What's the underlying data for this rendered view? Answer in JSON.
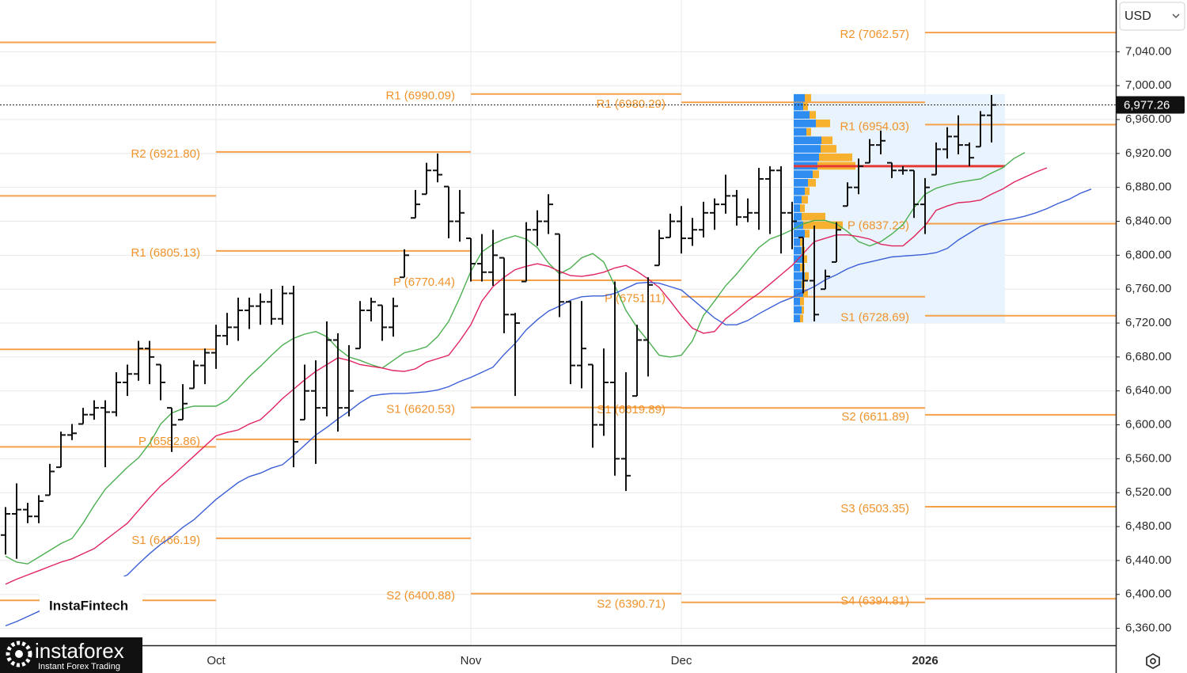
{
  "chart_data": {
    "type": "ohlc",
    "currency": "USD",
    "categories": [
      null,
      null,
      null,
      null,
      null,
      null,
      null,
      null,
      null,
      null,
      null,
      null,
      null,
      null,
      null,
      null,
      null,
      null,
      null,
      "Oct",
      null,
      null,
      null,
      null,
      null,
      null,
      null,
      null,
      null,
      null,
      null,
      null,
      null,
      null,
      null,
      null,
      null,
      null,
      null,
      null,
      null,
      null,
      "Nov",
      null,
      null,
      null,
      null,
      null,
      null,
      null,
      null,
      null,
      null,
      null,
      null,
      null,
      null,
      null,
      null,
      null,
      null,
      "Dec",
      null,
      null,
      null,
      null,
      null,
      null,
      null,
      null,
      null,
      null,
      null,
      null,
      null,
      null,
      null,
      null,
      null,
      null,
      null,
      null,
      null,
      "2026",
      null,
      null,
      null,
      null,
      null,
      null,
      null,
      null,
      null,
      null,
      null,
      null,
      null,
      null,
      null,
      null,
      null
    ],
    "open": [
      6470,
      6495,
      6500,
      6492,
      6517,
      6550,
      6588,
      6601,
      6612,
      6620,
      6615,
      6650,
      6660,
      6690,
      6671,
      6620,
      6606,
      6643,
      6670,
      6685,
      6705,
      6715,
      6735,
      6740,
      6745,
      6725,
      6755,
      6606,
      6640,
      6620,
      6700,
      6620,
      6690,
      6735,
      6741,
      6715,
      6774,
      6844,
      6872,
      6900,
      6881,
      6840,
      6820,
      6790,
      6780,
      6797,
      6730,
      6769,
      6830,
      6840,
      6825,
      6745,
      6670,
      6671,
      6600,
      6650,
      6560,
      6634,
      6700,
      6788,
      6821,
      6840,
      6820,
      6830,
      6850,
      6860,
      6870,
      6845,
      6850,
      6890,
      6900,
      6850,
      6821,
      6770,
      6760,
      6792,
      6858,
      6880,
      6909,
      6930,
      6909,
      6900,
      6900,
      6860,
      6895,
      6925,
      6940,
      6930,
      6928,
      6965,
      null,
      null,
      null,
      null,
      null,
      null,
      null,
      null,
      null,
      null,
      null
    ],
    "high": [
      6503,
      6531,
      6508,
      6517,
      6554,
      6592,
      6601,
      6620,
      6629,
      6629,
      6662,
      6671,
      6699,
      6699,
      6671,
      6620,
      6648,
      6676,
      6690,
      6718,
      6732,
      6750,
      6750,
      6755,
      6760,
      6764,
      6764,
      6671,
      6676,
      6722,
      6708,
      6694,
      6746,
      6750,
      6741,
      6750,
      6807,
      6877,
      6909,
      6920,
      6881,
      6877,
      6820,
      6825,
      6830,
      6797,
      6732,
      6839,
      6853,
      6872,
      6825,
      6746,
      6746,
      6671,
      6690,
      6769,
      6662,
      6718,
      6774,
      6830,
      6849,
      6858,
      6844,
      6863,
      6867,
      6895,
      6877,
      6867,
      6903,
      6905,
      6905,
      6863,
      6821,
      6835,
      6783,
      6839,
      6886,
      6914,
      6937,
      6947,
      6909,
      6905,
      6900,
      6891,
      6933,
      6951,
      6965,
      6933,
      6970,
      6989,
      null,
      null,
      null,
      null,
      null,
      null,
      null,
      null,
      null,
      null,
      null
    ],
    "low": [
      6447,
      6442,
      6484,
      6484,
      6517,
      6550,
      6582,
      6601,
      6606,
      6550,
      6610,
      6634,
      6652,
      6648,
      6629,
      6568,
      6606,
      6643,
      6648,
      6666,
      6694,
      6699,
      6713,
      6718,
      6718,
      6718,
      6550,
      6606,
      6554,
      6610,
      6592,
      6610,
      6690,
      6722,
      6699,
      6704,
      6774,
      6844,
      6872,
      6886,
      6820,
      6816,
      6769,
      6769,
      6764,
      6708,
      6634,
      6769,
      6811,
      6825,
      6727,
      6648,
      6643,
      6573,
      6587,
      6540,
      6522,
      6634,
      6657,
      6788,
      6821,
      6802,
      6811,
      6821,
      6830,
      6849,
      6835,
      6839,
      6830,
      6825,
      6802,
      6807,
      6755,
      6722,
      6760,
      6792,
      6858,
      6872,
      6909,
      6919,
      6891,
      6895,
      6844,
      6825,
      6895,
      6914,
      6919,
      6905,
      6928,
      6933,
      null,
      null,
      null,
      null,
      null,
      null,
      null,
      null,
      null,
      null,
      null
    ],
    "close": [
      6495,
      6500,
      6492,
      6510,
      6545,
      6588,
      6590,
      6612,
      6620,
      6615,
      6650,
      6660,
      6690,
      6680,
      6650,
      6600,
      6625,
      6670,
      6685,
      6705,
      6715,
      6735,
      6740,
      6745,
      6725,
      6755,
      6580,
      6640,
      6620,
      6700,
      6620,
      6640,
      6735,
      6745,
      6715,
      6740,
      6800,
      6860,
      6900,
      6895,
      6840,
      6850,
      6790,
      6780,
      6800,
      6730,
      6720,
      6830,
      6840,
      6860,
      6745,
      6670,
      6690,
      6600,
      6650,
      6560,
      6540,
      6700,
      6765,
      6820,
      6840,
      6820,
      6830,
      6850,
      6860,
      6870,
      6845,
      6850,
      6890,
      6900,
      6850,
      6840,
      6770,
      6730,
      6775,
      6830,
      6880,
      6905,
      6930,
      6935,
      6900,
      6900,
      6860,
      6880,
      6925,
      6940,
      6930,
      6915,
      6965,
      6977.26,
      null,
      null,
      null,
      null,
      null,
      null,
      null,
      null,
      null,
      null,
      null
    ],
    "bar_color": "#111111",
    "lines": [
      {
        "color": "#4caf50",
        "values": [
          6445,
          6438,
          6436,
          6444,
          6452,
          6460,
          6466,
          6484,
          6505,
          6524,
          6537,
          6550,
          6561,
          6578,
          6601,
          6614,
          6619,
          6622,
          6622,
          6622,
          6629,
          6643,
          6657,
          6669,
          6682,
          6694,
          6702,
          6707,
          6710,
          6704,
          6690,
          6680,
          6676,
          6671,
          6667,
          6676,
          6685,
          6688,
          6692,
          6704,
          6722,
          6750,
          6781,
          6804,
          6813,
          6819,
          6823,
          6819,
          6809,
          6791,
          6778,
          6785,
          6797,
          6802,
          6792,
          6764,
          6735,
          6715,
          6699,
          6682,
          6680,
          6682,
          6699,
          6729,
          6746,
          6764,
          6778,
          6794,
          6809,
          6819,
          6824,
          6830,
          6837,
          6841,
          6841,
          6837,
          6828,
          6816,
          6811,
          6816,
          6825,
          6836,
          6856,
          6872,
          6879,
          6883,
          6886,
          6888,
          6890,
          6897,
          6903,
          6914,
          6921,
          null,
          null,
          null,
          null,
          null,
          null,
          null,
          null
        ]
      },
      {
        "color": "#e0245e",
        "values": [
          6412,
          6418,
          6423,
          6428,
          6433,
          6438,
          6442,
          6448,
          6454,
          6464,
          6474,
          6484,
          6499,
          6514,
          6528,
          6539,
          6551,
          6563,
          6575,
          6587,
          6591,
          6594,
          6601,
          6606,
          6618,
          6631,
          6642,
          6653,
          6663,
          6671,
          6679,
          6676,
          6671,
          6669,
          6667,
          6664,
          6663,
          6666,
          6674,
          6678,
          6682,
          6699,
          6718,
          6746,
          6763,
          6774,
          6783,
          6787,
          6790,
          6787,
          6781,
          6776,
          6775,
          6777,
          6780,
          6785,
          6788,
          6781,
          6772,
          6762,
          6746,
          6729,
          6714,
          6708,
          6710,
          6725,
          6735,
          6746,
          6755,
          6766,
          6777,
          6788,
          6802,
          6816,
          6820,
          6824,
          6824,
          6822,
          6819,
          6813,
          6811,
          6811,
          6822,
          6835,
          6853,
          6858,
          6862,
          6863,
          6865,
          6872,
          6878,
          6886,
          6892,
          6898,
          6903,
          null,
          null,
          null,
          null,
          null,
          null
        ]
      },
      {
        "color": "#3b5fd6",
        "values": [
          6363,
          6368,
          6374,
          6380,
          6385,
          6390,
          6395,
          6401,
          6406,
          6411,
          6417,
          6423,
          6436,
          6448,
          6459,
          6468,
          6479,
          6488,
          6500,
          6512,
          6522,
          6532,
          6539,
          6543,
          6549,
          6553,
          6564,
          6576,
          6588,
          6597,
          6607,
          6616,
          6626,
          6634,
          6636,
          6637,
          6637,
          6638,
          6639,
          6641,
          6645,
          6651,
          6656,
          6662,
          6668,
          6683,
          6696,
          6712,
          6724,
          6734,
          6740,
          6747,
          6751,
          6752,
          6752,
          6755,
          6761,
          6767,
          6768,
          6767,
          6763,
          6759,
          6748,
          6737,
          6726,
          6718,
          6718,
          6723,
          6731,
          6738,
          6745,
          6750,
          6757,
          6763,
          6771,
          6777,
          6784,
          6789,
          6792,
          6795,
          6798,
          6799,
          6800,
          6801,
          6803,
          6808,
          6818,
          6826,
          6834,
          6838,
          6841,
          6843,
          6846,
          6850,
          6855,
          6861,
          6866,
          6873,
          6878,
          null,
          null
        ]
      }
    ],
    "ylim": [
      6340,
      7101
    ],
    "yticks": [
      {
        "value": 6360,
        "label": "6,360.00"
      },
      {
        "value": 6400,
        "label": "6,400.00"
      },
      {
        "value": 6440,
        "label": "6,440.00"
      },
      {
        "value": 6480,
        "label": "6,480.00"
      },
      {
        "value": 6520,
        "label": "6,520.00"
      },
      {
        "value": 6560,
        "label": "6,560.00"
      },
      {
        "value": 6600,
        "label": "6,600.00"
      },
      {
        "value": 6640,
        "label": "6,640.00"
      },
      {
        "value": 6680,
        "label": "6,680.00"
      },
      {
        "value": 6720,
        "label": "6,720.00"
      },
      {
        "value": 6760,
        "label": "6,760.00"
      },
      {
        "value": 6800,
        "label": "6,800.00"
      },
      {
        "value": 6840,
        "label": "6,840.00"
      },
      {
        "value": 6880,
        "label": "6,880.00"
      },
      {
        "value": 6920,
        "label": "6,920.00"
      },
      {
        "value": 6960,
        "label": "6,960.00"
      },
      {
        "value": 7000,
        "label": "7,000.00"
      },
      {
        "value": 7040,
        "label": "7,040.00"
      }
    ],
    "grid": true,
    "last_price": {
      "value": 6977.26,
      "label": "6,977.26"
    },
    "pivot_color": "#f5a04a",
    "pivot_periods": [
      {
        "levels": [
          {
            "value": 7051
          },
          {
            "value": 6870
          },
          {
            "value": 6689
          },
          {
            "value": 6574
          },
          {
            "value": 6393
          }
        ]
      },
      {
        "levels": [
          {
            "label": "R2 (6921.80)",
            "value": 6921.8
          },
          {
            "label": "R1 (6805.13)",
            "value": 6805.13
          },
          {
            "label": "P (6582.86)",
            "value": 6582.86
          },
          {
            "label": "S1 (6466.19)",
            "value": 6466.19
          }
        ]
      },
      {
        "levels": [
          {
            "label": "R1 (6990.09)",
            "value": 6990.09
          },
          {
            "label": "P (6770.44)",
            "value": 6770.44
          },
          {
            "label": "S1 (6620.53)",
            "value": 6620.53
          },
          {
            "label": "S2 (6400.88)",
            "value": 6400.88
          }
        ]
      },
      {
        "levels": [
          {
            "label": "R1 (6980.29)",
            "value": 6980.29
          },
          {
            "label": "P (6751.11)",
            "value": 6751.11
          },
          {
            "label": "S1 (6619.89)",
            "value": 6619.89
          },
          {
            "label": "S2 (6390.71)",
            "value": 6390.71
          }
        ]
      },
      {
        "levels": [
          {
            "label": "R2 (7062.57)",
            "value": 7062.57
          },
          {
            "label": "R1 (6954.03)",
            "value": 6954.03
          },
          {
            "label": "P (6837.23)",
            "value": 6837.23
          },
          {
            "label": "S1 (6728.69)",
            "value": 6728.69
          },
          {
            "label": "S2 (6611.89)",
            "value": 6611.89
          },
          {
            "label": "S3 (6503.35)",
            "value": 6503.35
          },
          {
            "label": "S4 (6394.81)",
            "value": 6394.81
          }
        ]
      }
    ],
    "volume_profile": {
      "bins": [
        6720,
        6730,
        6740,
        6750,
        6760,
        6770,
        6780,
        6790,
        6800,
        6810,
        6820,
        6830,
        6840,
        6850,
        6860,
        6870,
        6880,
        6890,
        6900,
        6910,
        6920,
        6930,
        6940,
        6950,
        6960,
        6970,
        6980,
        6990
      ],
      "up": [
        8,
        10,
        8,
        12,
        10,
        14,
        8,
        12,
        10,
        8,
        14,
        12,
        10,
        8,
        10,
        14,
        18,
        24,
        30,
        32,
        34,
        35,
        16,
        28,
        20,
        12,
        14
      ],
      "down": [
        4,
        3,
        5,
        6,
        4,
        5,
        6,
        5,
        4,
        3,
        6,
        50,
        30,
        6,
        8,
        6,
        10,
        8,
        48,
        42,
        20,
        14,
        6,
        18,
        8,
        6,
        8
      ],
      "up_color": "#2f8cf0",
      "down_color": "#f7b12e",
      "area_color": "#e8f3fd",
      "poc": 6905,
      "poc_color": "#e53935"
    }
  },
  "branding": {
    "logo": "InstaFintech",
    "brand": "instaforex",
    "tagline": "Instant Forex Trading"
  }
}
